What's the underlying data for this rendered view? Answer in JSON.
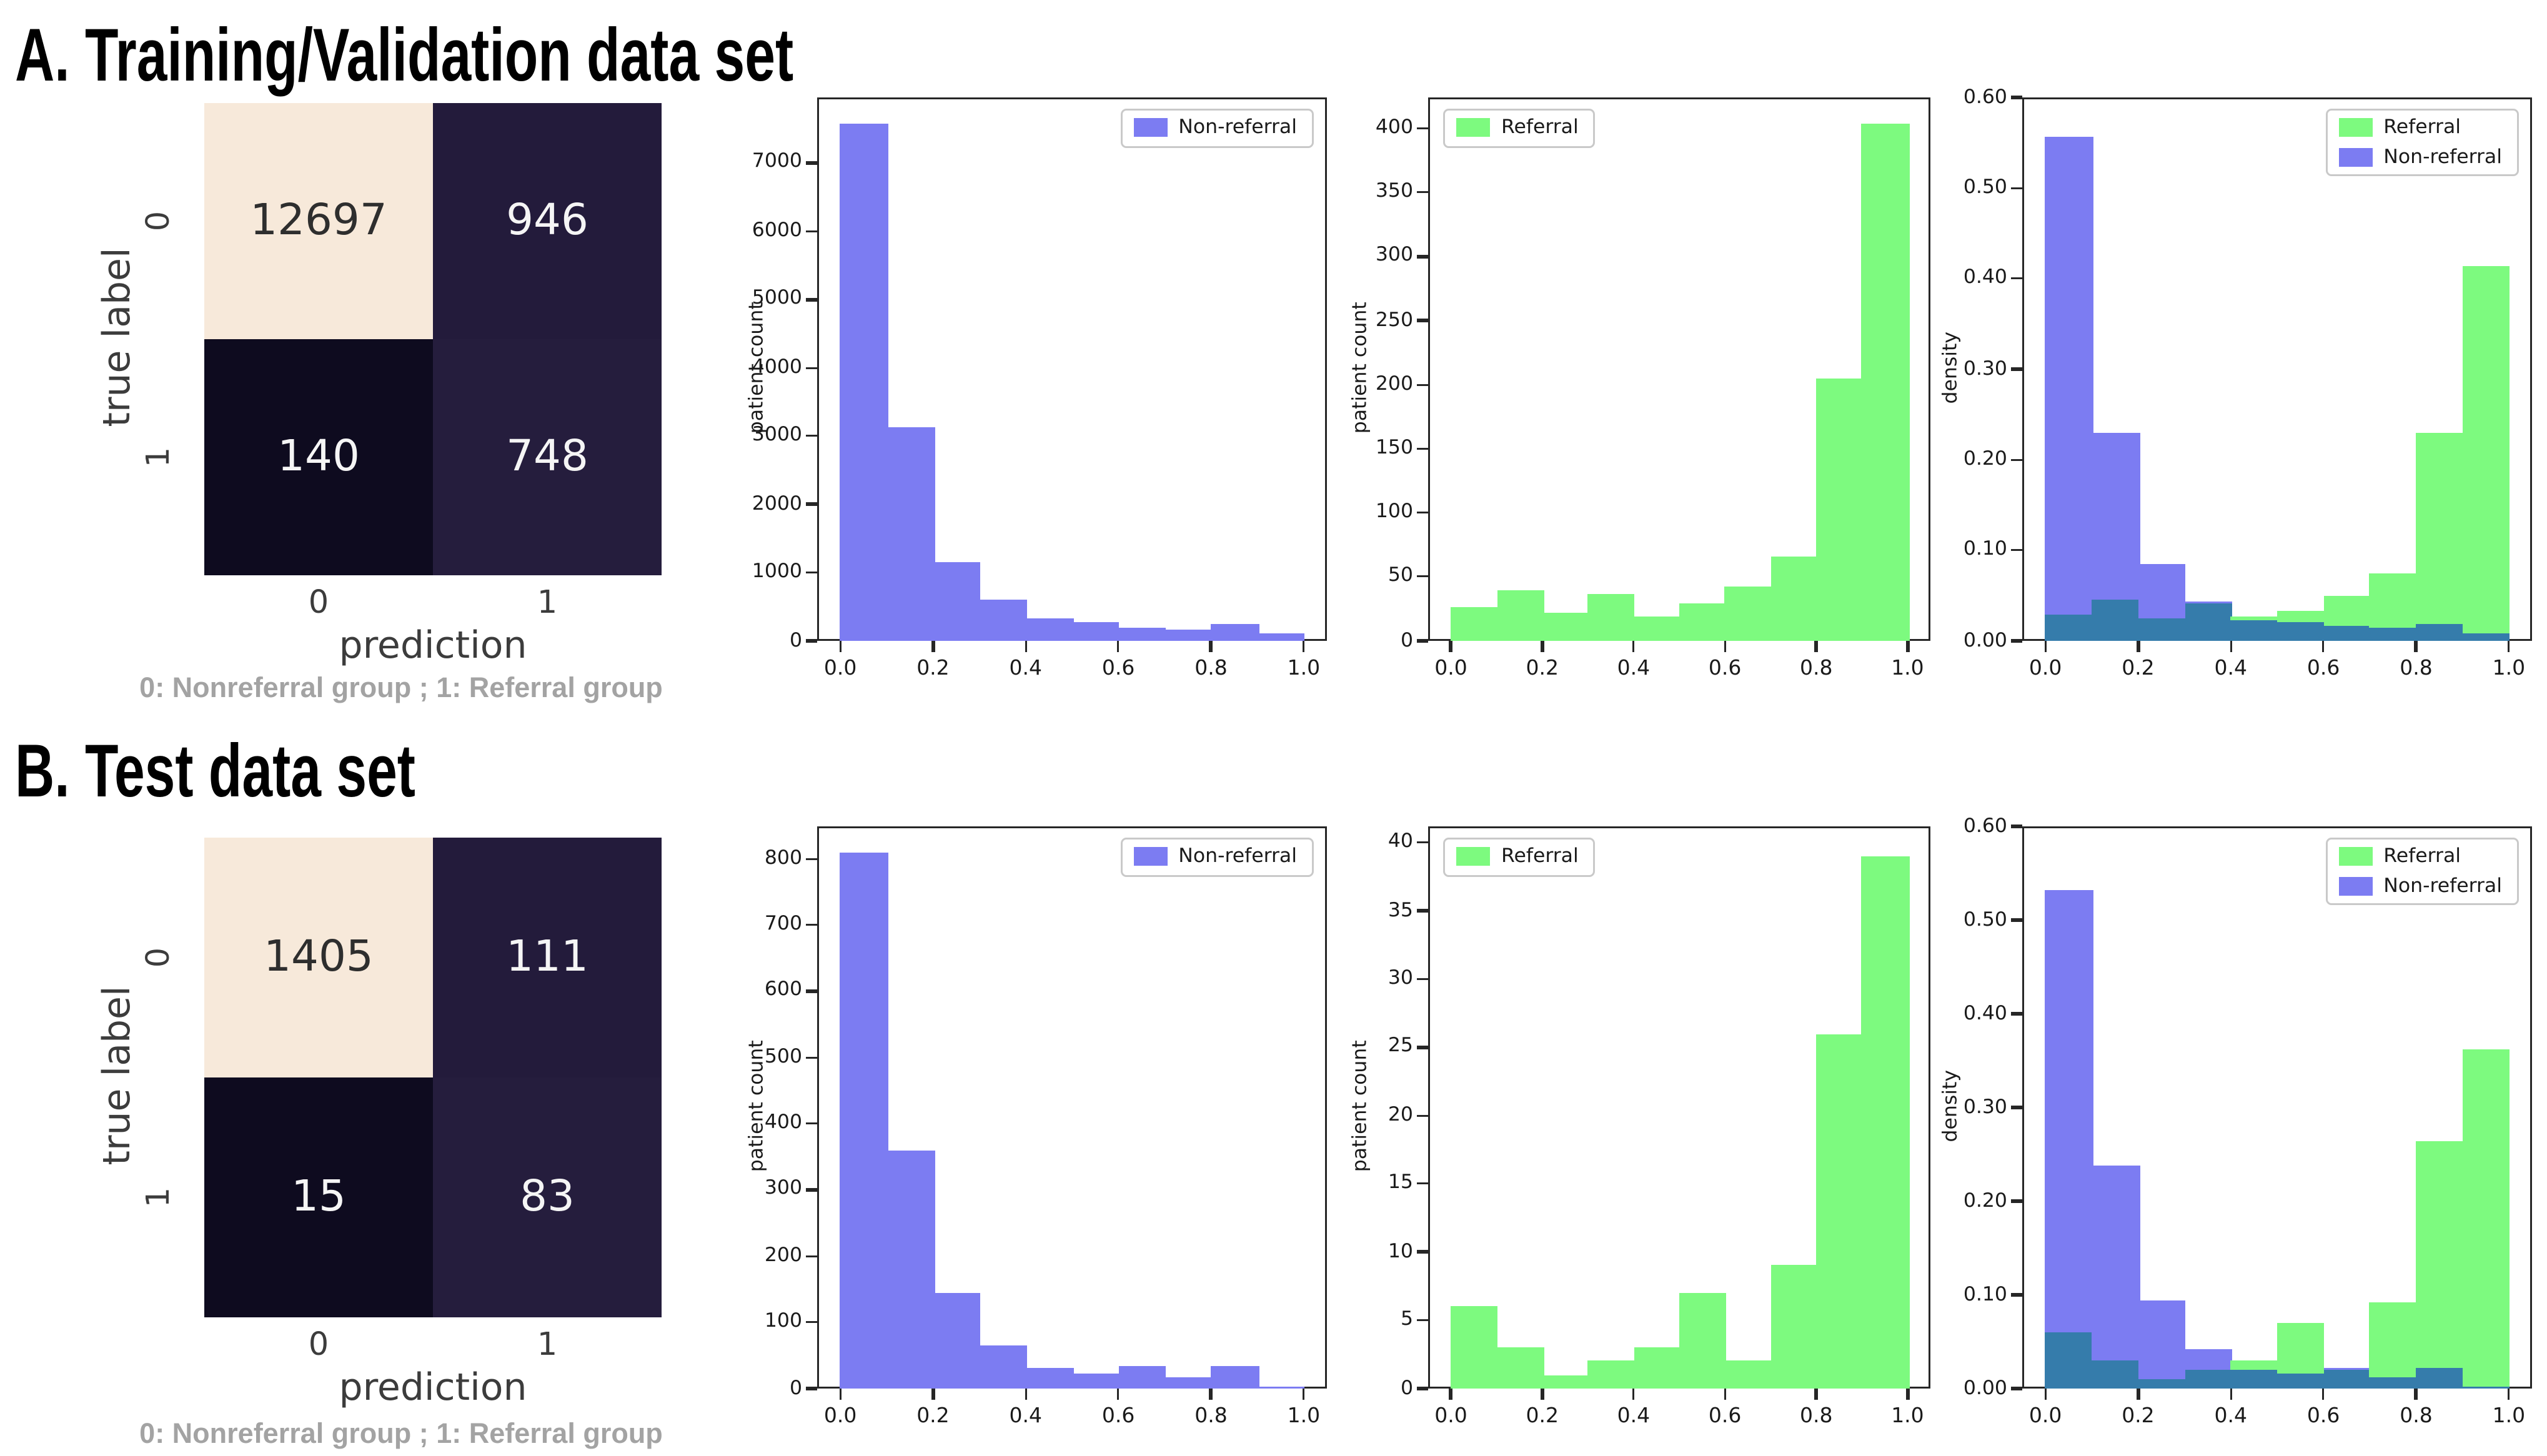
{
  "page": {
    "background": "#ffffff"
  },
  "sections": [
    {
      "label": "A",
      "title": "A. Training/Validation data set",
      "caption": "0: Nonreferral group ; 1: Referral group"
    },
    {
      "label": "B",
      "title": "B. Test data set",
      "caption": "0: Nonreferral group ; 1: Referral group"
    }
  ],
  "colors": {
    "non_referral_blue": "#7c7cf2",
    "referral_green": "#7dfa7f",
    "overlap_teal": "#357cab",
    "matrix_cream": "#f7e9da",
    "matrix_dark_purple": "#231b3b",
    "matrix_darkest": "#0e0b1f",
    "matrix_dark_purple2": "#251d3d",
    "caption_gray": "#a3a3a3",
    "axis_text": "#3c3c3c",
    "spine": "#262626"
  },
  "chart_data": [
    {
      "id": "confusion_matrix_train",
      "type": "heatmap",
      "section": "A",
      "xlabel": "prediction",
      "ylabel": "true label",
      "x_tick_labels": [
        "0",
        "1"
      ],
      "y_tick_labels": [
        "0",
        "1"
      ],
      "rows": [
        [
          12697,
          946
        ],
        [
          140,
          748
        ]
      ],
      "cell_colors": [
        [
          "#f7e9da",
          "#231b3b"
        ],
        [
          "#0e0b1f",
          "#251d3d"
        ]
      ]
    },
    {
      "id": "hist_nonreferral_train",
      "type": "bar",
      "section": "A",
      "ylabel": "patient count",
      "xlim": [
        -0.05,
        1.05
      ],
      "bin_start": 0.0,
      "bin_width": 0.1,
      "x_tick_values": [
        0.0,
        0.2,
        0.4,
        0.6,
        0.8,
        1.0
      ],
      "x_tick_labels": [
        "0.0",
        "0.2",
        "0.4",
        "0.6",
        "0.8",
        "1.0"
      ],
      "y_tick_values": [
        0,
        1000,
        2000,
        3000,
        4000,
        5000,
        6000,
        7000
      ],
      "y_tick_labels": [
        "0",
        "1000",
        "2000",
        "3000",
        "4000",
        "5000",
        "6000",
        "7000"
      ],
      "y_axis_max": 7960,
      "grid": false,
      "legend_position": "top-right",
      "legend": [
        {
          "label": "Non-referral",
          "color": "#7c7cf2"
        }
      ],
      "series": [
        {
          "name": "Non-referral",
          "color": "#7c7cf2",
          "values": [
            7580,
            3120,
            1150,
            600,
            340,
            270,
            200,
            165,
            240,
            100
          ]
        }
      ]
    },
    {
      "id": "hist_referral_train",
      "type": "bar",
      "section": "A",
      "ylabel": "patient count",
      "xlim": [
        -0.05,
        1.05
      ],
      "bin_start": 0.0,
      "bin_width": 0.1,
      "x_tick_values": [
        0.0,
        0.2,
        0.4,
        0.6,
        0.8,
        1.0
      ],
      "x_tick_labels": [
        "0.0",
        "0.2",
        "0.4",
        "0.6",
        "0.8",
        "1.0"
      ],
      "y_tick_values": [
        0,
        50,
        100,
        150,
        200,
        250,
        300,
        350,
        400
      ],
      "y_tick_labels": [
        "0",
        "50",
        "100",
        "150",
        "200",
        "250",
        "300",
        "350",
        "400"
      ],
      "y_axis_max": 424,
      "grid": false,
      "legend_position": "top-left",
      "legend": [
        {
          "label": "Referral",
          "color": "#7dfa7f"
        }
      ],
      "series": [
        {
          "name": "Referral",
          "color": "#7dfa7f",
          "values": [
            27,
            39,
            22,
            36,
            19,
            29,
            43,
            66,
            204,
            403
          ]
        }
      ]
    },
    {
      "id": "density_train",
      "type": "bar",
      "section": "A",
      "ylabel": "density",
      "xlim": [
        -0.05,
        1.05
      ],
      "bin_start": 0.0,
      "bin_width": 0.1,
      "x_tick_values": [
        0.0,
        0.2,
        0.4,
        0.6,
        0.8,
        1.0
      ],
      "x_tick_labels": [
        "0.0",
        "0.2",
        "0.4",
        "0.6",
        "0.8",
        "1.0"
      ],
      "y_tick_values": [
        0.0,
        0.1,
        0.2,
        0.3,
        0.4,
        0.5,
        0.6
      ],
      "y_tick_labels": [
        "0.00",
        "0.10",
        "0.20",
        "0.30",
        "0.40",
        "0.50",
        "0.60"
      ],
      "y_axis_max": 0.6,
      "grid": false,
      "overlap_color": "#357cab",
      "legend_position": "top-right",
      "legend": [
        {
          "label": "Referral",
          "color": "#7dfa7f"
        },
        {
          "label": "Non-referral",
          "color": "#7c7cf2"
        }
      ],
      "series": [
        {
          "name": "Referral",
          "color": "#7dfa7f",
          "values": [
            0.029,
            0.045,
            0.025,
            0.041,
            0.026,
            0.034,
            0.05,
            0.075,
            0.23,
            0.413
          ]
        },
        {
          "name": "Non-referral",
          "color": "#7c7cf2",
          "values": [
            0.556,
            0.229,
            0.085,
            0.044,
            0.023,
            0.02,
            0.016,
            0.015,
            0.019,
            0.008
          ]
        }
      ]
    },
    {
      "id": "confusion_matrix_test",
      "type": "heatmap",
      "section": "B",
      "xlabel": "prediction",
      "ylabel": "true label",
      "x_tick_labels": [
        "0",
        "1"
      ],
      "y_tick_labels": [
        "0",
        "1"
      ],
      "rows": [
        [
          1405,
          111
        ],
        [
          15,
          83
        ]
      ],
      "cell_colors": [
        [
          "#f7e9da",
          "#231b3b"
        ],
        [
          "#0e0b1f",
          "#251d3d"
        ]
      ]
    },
    {
      "id": "hist_nonreferral_test",
      "type": "bar",
      "section": "B",
      "ylabel": "patient count",
      "xlim": [
        -0.05,
        1.05
      ],
      "bin_start": 0.0,
      "bin_width": 0.1,
      "x_tick_values": [
        0.0,
        0.2,
        0.4,
        0.6,
        0.8,
        1.0
      ],
      "x_tick_labels": [
        "0.0",
        "0.2",
        "0.4",
        "0.6",
        "0.8",
        "1.0"
      ],
      "y_tick_values": [
        0,
        100,
        200,
        300,
        400,
        500,
        600,
        700,
        800
      ],
      "y_tick_labels": [
        "0",
        "100",
        "200",
        "300",
        "400",
        "500",
        "600",
        "700",
        "800"
      ],
      "y_axis_max": 849,
      "grid": false,
      "legend_position": "top-right",
      "legend": [
        {
          "label": "Non-referral",
          "color": "#7c7cf2"
        }
      ],
      "series": [
        {
          "name": "Non-referral",
          "color": "#7c7cf2",
          "values": [
            808,
            360,
            145,
            65,
            31,
            23,
            33,
            18,
            33,
            2
          ]
        }
      ]
    },
    {
      "id": "hist_referral_test",
      "type": "bar",
      "section": "B",
      "ylabel": "patient count",
      "xlim": [
        -0.05,
        1.05
      ],
      "bin_start": 0.0,
      "bin_width": 0.1,
      "x_tick_values": [
        0.0,
        0.2,
        0.4,
        0.6,
        0.8,
        1.0
      ],
      "x_tick_labels": [
        "0.0",
        "0.2",
        "0.4",
        "0.6",
        "0.8",
        "1.0"
      ],
      "y_tick_values": [
        0,
        5,
        10,
        15,
        20,
        25,
        30,
        35,
        40
      ],
      "y_tick_labels": [
        "0",
        "5",
        "10",
        "15",
        "20",
        "25",
        "30",
        "35",
        "40"
      ],
      "y_axis_max": 41.2,
      "grid": false,
      "legend_position": "top-left",
      "legend": [
        {
          "label": "Referral",
          "color": "#7dfa7f"
        }
      ],
      "series": [
        {
          "name": "Referral",
          "color": "#7dfa7f",
          "values": [
            6,
            3,
            1,
            2,
            3,
            7,
            2,
            9,
            26,
            39
          ]
        }
      ]
    },
    {
      "id": "density_test",
      "type": "bar",
      "section": "B",
      "ylabel": "density",
      "xlim": [
        -0.05,
        1.05
      ],
      "bin_start": 0.0,
      "bin_width": 0.1,
      "x_tick_values": [
        0.0,
        0.2,
        0.4,
        0.6,
        0.8,
        1.0
      ],
      "x_tick_labels": [
        "0.0",
        "0.2",
        "0.4",
        "0.6",
        "0.8",
        "1.0"
      ],
      "y_tick_values": [
        0.0,
        0.1,
        0.2,
        0.3,
        0.4,
        0.5,
        0.6
      ],
      "y_tick_labels": [
        "0.00",
        "0.10",
        "0.20",
        "0.30",
        "0.40",
        "0.50",
        "0.60"
      ],
      "y_axis_max": 0.6,
      "grid": false,
      "overlap_color": "#357cab",
      "legend_position": "top-right",
      "legend": [
        {
          "label": "Referral",
          "color": "#7dfa7f"
        },
        {
          "label": "Non-referral",
          "color": "#7c7cf2"
        }
      ],
      "series": [
        {
          "name": "Referral",
          "color": "#7dfa7f",
          "values": [
            0.061,
            0.031,
            0.01,
            0.02,
            0.031,
            0.071,
            0.02,
            0.092,
            0.265,
            0.362
          ]
        },
        {
          "name": "Non-referral",
          "color": "#7c7cf2",
          "values": [
            0.533,
            0.238,
            0.094,
            0.043,
            0.021,
            0.017,
            0.022,
            0.013,
            0.022,
            0.002
          ]
        }
      ]
    }
  ]
}
